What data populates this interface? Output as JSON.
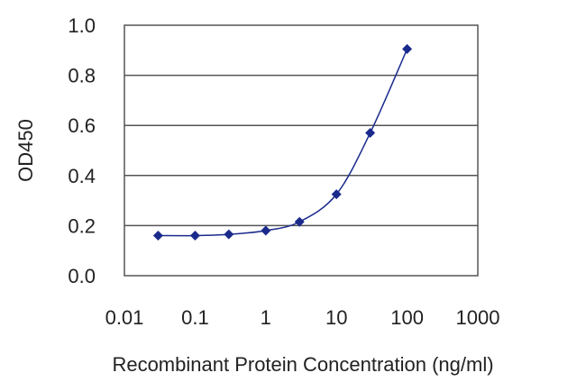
{
  "chart_data": {
    "type": "line",
    "xscale": "log",
    "xlabel": "Recombinant Protein Concentration (ng/ml)",
    "ylabel": "OD450",
    "xlim": [
      0.01,
      1000
    ],
    "ylim": [
      0.0,
      1.0
    ],
    "xticks": [
      0.01,
      0.1,
      1,
      10,
      100,
      1000
    ],
    "xtick_labels": [
      "0.01",
      "0.1",
      "1",
      "10",
      "100",
      "1000"
    ],
    "yticks": [
      0.0,
      0.2,
      0.4,
      0.6,
      0.8,
      1.0
    ],
    "ytick_labels": [
      "0.0",
      "0.2",
      "0.4",
      "0.6",
      "0.8",
      "1.0"
    ],
    "grid": "horizontal",
    "series": [
      {
        "color": "#1a2a8c",
        "marker": "diamond",
        "x": [
          0.03,
          0.1,
          0.3,
          1,
          3,
          10,
          30,
          100
        ],
        "y": [
          0.16,
          0.16,
          0.165,
          0.18,
          0.215,
          0.325,
          0.57,
          0.905
        ]
      }
    ]
  }
}
